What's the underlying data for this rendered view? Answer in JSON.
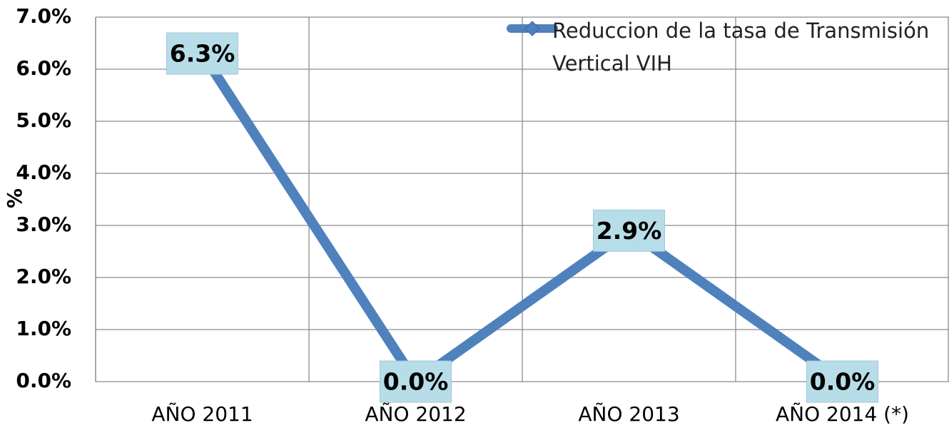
{
  "chart_data": {
    "type": "line",
    "y_label": "%",
    "categories": [
      "AÑO 2011",
      "AÑO 2012",
      "AÑO 2013",
      "AÑO 2014 (*)"
    ],
    "series": [
      {
        "name": "Reduccion de la tasa de Transmisión Vertical VIH",
        "color": "#4f81bd",
        "values": [
          6.3,
          0,
          2.9,
          0
        ],
        "value_labels": [
          "6.3%",
          "0.0%",
          "2.9%",
          "0.0%"
        ]
      }
    ],
    "ylim": [
      0,
      7
    ],
    "yticks": [
      {
        "value": 0,
        "label": "0.0%"
      },
      {
        "value": 1,
        "label": "1.0%"
      },
      {
        "value": 2,
        "label": "2.0%"
      },
      {
        "value": 3,
        "label": "3.0%"
      },
      {
        "value": 4,
        "label": "4.0%"
      },
      {
        "value": 5,
        "label": "5.0%"
      },
      {
        "value": 6,
        "label": "6.0%"
      },
      {
        "value": 7,
        "label": "7.0%"
      }
    ],
    "grid": true,
    "legend": "top-right"
  }
}
